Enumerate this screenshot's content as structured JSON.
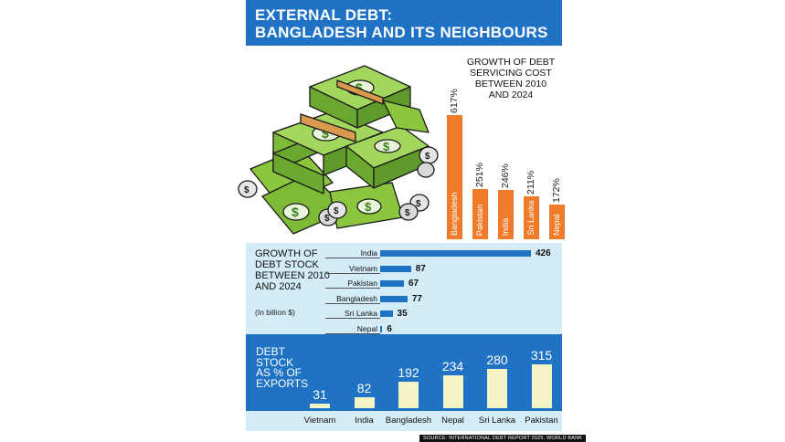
{
  "header": {
    "title_line1": "EXTERNAL DEBT:",
    "title_line2": "BANGLADESH AND ITS NEIGHBOURS"
  },
  "colors": {
    "brand_blue": "#1f72c4",
    "light_blue": "#d3ecf7",
    "orange": "#f07c2b",
    "cream": "#f5f3c8"
  },
  "illustration": {
    "icon": "money-stacks-illustration"
  },
  "source": "SOURCE: INTERNATIONAL DEBT REPORT 2025, WORLD BANK",
  "chart_data": [
    {
      "type": "bar",
      "orientation": "vertical",
      "title_lines": [
        "GROWTH OF DEBT",
        "SERVICING COST",
        "BETWEEN 2010",
        "AND 2024"
      ],
      "categories": [
        "Bangladesh",
        "Pakistan",
        "India",
        "Sri Lanka",
        "Nepal"
      ],
      "values": [
        617,
        251,
        246,
        211,
        172
      ],
      "value_labels": [
        "617%",
        "251%",
        "246%",
        "211%",
        "172%"
      ],
      "ylim": [
        0,
        617
      ]
    },
    {
      "type": "bar",
      "orientation": "horizontal",
      "title_lines": [
        "GROWTH OF",
        "DEBT STOCK",
        "BETWEEN 2010",
        "AND 2024"
      ],
      "unit": "(In billion $)",
      "categories": [
        "India",
        "Vietnam",
        "Pakistan",
        "Bangladesh",
        "Sri Lanka",
        "Nepal"
      ],
      "values": [
        426,
        87,
        67,
        77,
        35,
        6
      ],
      "value_labels": [
        "426",
        "87",
        "67",
        "77",
        "35",
        "6"
      ],
      "xlim": [
        0,
        426
      ]
    },
    {
      "type": "bar",
      "orientation": "vertical",
      "title_lines": [
        "DEBT",
        "STOCK",
        "AS % OF",
        "EXPORTS"
      ],
      "categories": [
        "Vietnam",
        "India",
        "Bangladesh",
        "Nepal",
        "Sri Lanka",
        "Pakistan"
      ],
      "values": [
        31,
        82,
        192,
        234,
        280,
        315
      ],
      "value_labels": [
        "31",
        "82",
        "192",
        "234",
        "280",
        "315"
      ],
      "ylim": [
        0,
        315
      ]
    }
  ]
}
